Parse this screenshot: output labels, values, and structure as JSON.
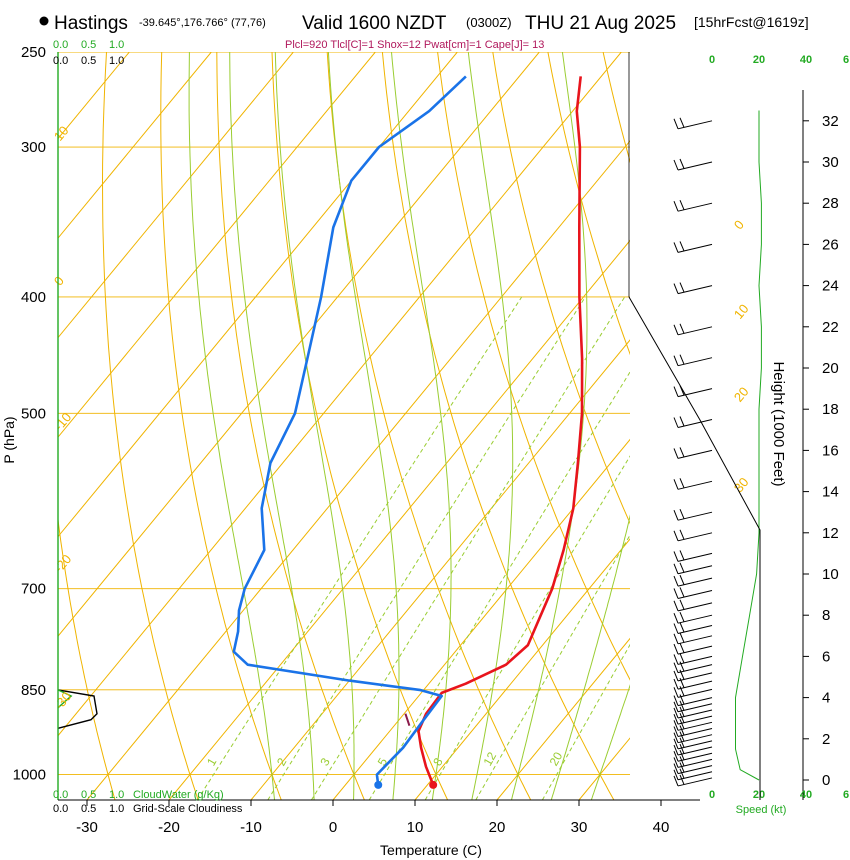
{
  "header": {
    "station": "Hastings",
    "coords": "-39.645°,176.766° (77,76)",
    "valid": "Valid 1600 NZDT",
    "utc": "(0300Z)",
    "date": "THU 21 Aug 2025",
    "forecast": "[15hrFcst@1619z]",
    "indices": "Plcl=920 Tlcl[C]=1 Shox=12 Pwat[cm]=1 Cape[J]= 13"
  },
  "colors": {
    "temperature": "#e8141c",
    "dewpoint": "#1a73e8",
    "isotherm": "#f0b400",
    "dry_adiabat": "#f0b400",
    "moist_adiabat": "#9acd32",
    "mixing_ratio": "#9acd32",
    "cloud": "#22aa22",
    "indices": "#b0185c"
  },
  "chart_data": {
    "type": "skew-t",
    "xlabel": "Temperature (C)",
    "ylabel": "P (hPa)",
    "right_ylabel": "Height (1000 Feet)",
    "x_ticks": [
      -30,
      -20,
      -10,
      0,
      10,
      20,
      30,
      40
    ],
    "x_tick_labels": [
      "-30",
      "-20",
      "-10",
      "0",
      "10",
      "20",
      "30",
      "40"
    ],
    "p_ticks": [
      250,
      300,
      400,
      500,
      700,
      850,
      1000
    ],
    "p_tick_labels": [
      "250",
      "300",
      "400",
      "500",
      "700",
      "850",
      "1000"
    ],
    "height_ticks": [
      0,
      2,
      4,
      6,
      8,
      10,
      12,
      14,
      16,
      18,
      20,
      22,
      24,
      26,
      28,
      30,
      32
    ],
    "height_tick_labels": [
      "0",
      "2",
      "4",
      "6",
      "8",
      "10",
      "12",
      "14",
      "16",
      "18",
      "20",
      "22",
      "24",
      "26",
      "28",
      "30",
      "32"
    ],
    "isotherm_labels": [
      {
        "t": 10,
        "label": "10",
        "p": 297
      },
      {
        "t": 0,
        "label": "0",
        "p": 392
      },
      {
        "t": -10,
        "label": "-10",
        "p": 518
      },
      {
        "t": -20,
        "label": "-20",
        "p": 680
      },
      {
        "t": -30,
        "label": "-30",
        "p": 885
      },
      {
        "t": 0,
        "label": "0",
        "p": 352,
        "side": "right"
      },
      {
        "t": 10,
        "label": "10",
        "p": 418,
        "side": "right"
      },
      {
        "t": 20,
        "label": "20",
        "p": 490,
        "side": "right"
      },
      {
        "t": 30,
        "label": "30",
        "p": 583,
        "side": "right"
      }
    ],
    "mixing_ratio_labels": [
      "1",
      "2",
      "3",
      "5",
      "8",
      "12",
      "20"
    ],
    "temperature_profile": {
      "name": "Temperature",
      "points": [
        {
          "p": 1020,
          "t": 10.7
        },
        {
          "p": 985,
          "t": 8.0
        },
        {
          "p": 950,
          "t": 5.5
        },
        {
          "p": 920,
          "t": 3.5
        },
        {
          "p": 890,
          "t": 2.7
        },
        {
          "p": 855,
          "t": 2.5
        },
        {
          "p": 840,
          "t": 4.5
        },
        {
          "p": 810,
          "t": 7.5
        },
        {
          "p": 780,
          "t": 8.2
        },
        {
          "p": 700,
          "t": 5.5
        },
        {
          "p": 650,
          "t": 3.0
        },
        {
          "p": 600,
          "t": 0.0
        },
        {
          "p": 550,
          "t": -4.0
        },
        {
          "p": 500,
          "t": -8.5
        },
        {
          "p": 450,
          "t": -14.0
        },
        {
          "p": 400,
          "t": -20.5
        },
        {
          "p": 350,
          "t": -27.5
        },
        {
          "p": 300,
          "t": -35.5
        },
        {
          "p": 280,
          "t": -39.5
        },
        {
          "p": 262,
          "t": -42.5
        }
      ]
    },
    "dewpoint_profile": {
      "name": "Dewpoint",
      "points": [
        {
          "p": 1020,
          "t": 4.0
        },
        {
          "p": 1000,
          "t": 2.8
        },
        {
          "p": 950,
          "t": 3.3
        },
        {
          "p": 900,
          "t": 3.0
        },
        {
          "p": 860,
          "t": 2.8
        },
        {
          "p": 850,
          "t": -0.5
        },
        {
          "p": 835,
          "t": -10.0
        },
        {
          "p": 810,
          "t": -24.0
        },
        {
          "p": 790,
          "t": -27.0
        },
        {
          "p": 760,
          "t": -28.5
        },
        {
          "p": 730,
          "t": -30.5
        },
        {
          "p": 700,
          "t": -32.0
        },
        {
          "p": 650,
          "t": -33.5
        },
        {
          "p": 600,
          "t": -38.0
        },
        {
          "p": 550,
          "t": -41.5
        },
        {
          "p": 500,
          "t": -43.5
        },
        {
          "p": 450,
          "t": -47.5
        },
        {
          "p": 400,
          "t": -52.0
        },
        {
          "p": 350,
          "t": -57.5
        },
        {
          "p": 320,
          "t": -60.0
        },
        {
          "p": 300,
          "t": -60.0
        },
        {
          "p": 280,
          "t": -57.5
        },
        {
          "p": 262,
          "t": -56.5
        }
      ]
    },
    "surface_temperature": 10.7,
    "surface_dewpoint": 4.0,
    "parcel_lcl": {
      "p": 920,
      "t": 1
    },
    "cloud_axis": {
      "labels": [
        "0.0",
        "0.5",
        "1.0"
      ],
      "cloudwater_label": "CloudWater (g/Kg)",
      "cloudiness_label": "Grid-Scale Cloudiness",
      "cloudiness": [
        {
          "p": 850,
          "v": 0.0
        },
        {
          "p": 860,
          "v": 0.6
        },
        {
          "p": 890,
          "v": 0.65
        },
        {
          "p": 900,
          "v": 0.55
        },
        {
          "p": 915,
          "v": 0.0
        }
      ],
      "cloudwater": [
        {
          "p": 850,
          "v": 0.0
        },
        {
          "p": 860,
          "v": 0.22
        },
        {
          "p": 875,
          "v": 0.05
        },
        {
          "p": 880,
          "v": 0.0
        }
      ]
    },
    "wind_speed": {
      "label": "Speed (kt)",
      "ticks": [
        0,
        20,
        40
      ],
      "tick_labels": [
        "0",
        "20",
        "40"
      ],
      "km_ticks": [
        "0",
        "6"
      ],
      "profile_kt": [
        {
          "h": 0,
          "v": 20
        },
        {
          "h": 0.5,
          "v": 12
        },
        {
          "h": 1.5,
          "v": 10
        },
        {
          "h": 4,
          "v": 10
        },
        {
          "h": 6,
          "v": 13
        },
        {
          "h": 8,
          "v": 16
        },
        {
          "h": 10,
          "v": 19
        },
        {
          "h": 12,
          "v": 20
        },
        {
          "h": 14,
          "v": 20
        },
        {
          "h": 16,
          "v": 20
        },
        {
          "h": 18,
          "v": 20
        },
        {
          "h": 20,
          "v": 21
        },
        {
          "h": 22,
          "v": 21
        },
        {
          "h": 24,
          "v": 20
        },
        {
          "h": 26,
          "v": 21
        },
        {
          "h": 28,
          "v": 21
        },
        {
          "h": 30,
          "v": 20
        },
        {
          "h": 32.5,
          "v": 20
        }
      ],
      "barbs_h": [
        0.1,
        0.4,
        0.7,
        1.0,
        1.3,
        1.6,
        1.9,
        2.2,
        2.5,
        2.8,
        3.1,
        3.4,
        3.7,
        4.0,
        4.4,
        4.8,
        5.2,
        5.6,
        6.0,
        6.5,
        7.0,
        7.5,
        8.0,
        8.6,
        9.2,
        9.8,
        10.4,
        11.0,
        12.0,
        13.0,
        14.5,
        16.0,
        17.5,
        19.0,
        20.5,
        22.0,
        24.0,
        26.0,
        28.0,
        30.0,
        32.0
      ]
    }
  }
}
